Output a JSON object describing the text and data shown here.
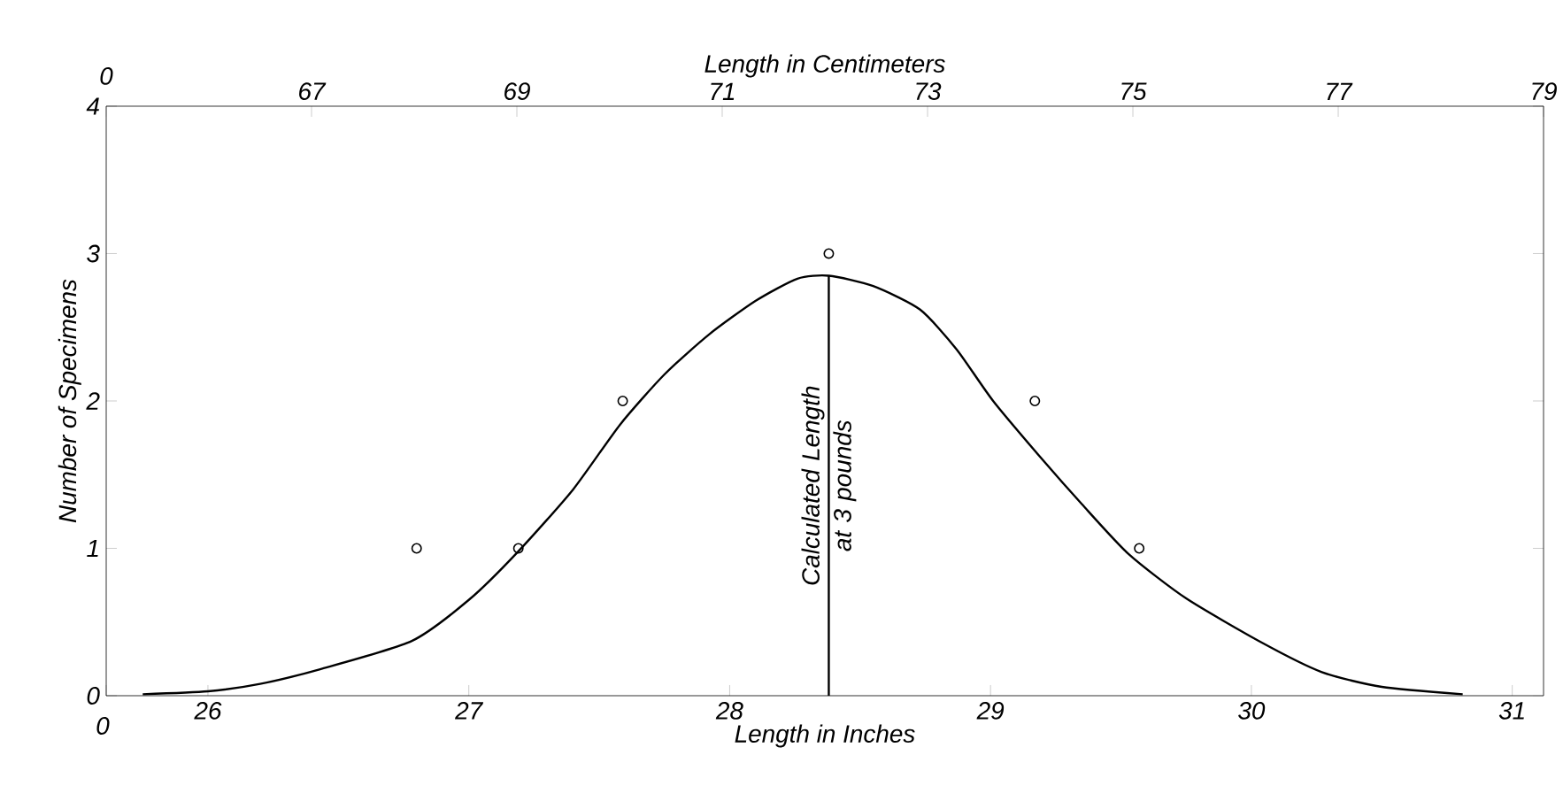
{
  "chart_data": {
    "type": "scatter",
    "xlabel": "Length in Inches",
    "ylabel": "Number of Specimens",
    "x2label": "Length in Centimeters",
    "xlim": [
      25.61,
      31.12
    ],
    "xticks": [
      {
        "value": 25.61,
        "label": null
      },
      26,
      27,
      28,
      29,
      30,
      31
    ],
    "x2lim": [
      65.0,
      79.0
    ],
    "x2ticks": [
      {
        "value": 65.0,
        "label": null
      },
      67,
      69,
      71,
      73,
      75,
      77,
      79
    ],
    "ylim": [
      0,
      4
    ],
    "yticks": [
      0,
      1,
      2,
      3,
      4
    ],
    "grid": false,
    "series": [
      {
        "color": "#000000",
        "marker": "circle",
        "x": [
          26.8,
          27.19,
          27.59,
          28.38,
          29.17,
          29.57
        ],
        "values": [
          1,
          1,
          2,
          3,
          2,
          1
        ]
      },
      {
        "type": "line",
        "color": "#000000",
        "marker": "none",
        "line_style": "solid",
        "x": [
          25.75,
          26.0,
          26.2,
          26.43,
          26.78,
          27.0,
          27.19,
          27.4,
          27.58,
          27.75,
          27.92,
          28.1,
          28.26,
          28.38,
          28.55,
          28.73,
          28.87,
          29.01,
          29.2,
          29.35,
          29.53,
          29.75,
          30.04,
          30.27,
          30.5,
          30.81
        ],
        "values": [
          0.01,
          0.03,
          0.08,
          0.18,
          0.37,
          0.65,
          0.98,
          1.4,
          1.84,
          2.18,
          2.45,
          2.68,
          2.83,
          2.85,
          2.78,
          2.62,
          2.35,
          2.0,
          1.6,
          1.3,
          0.96,
          0.66,
          0.36,
          0.16,
          0.06,
          0.01
        ]
      }
    ],
    "annotations": [
      "0",
      "0"
    ],
    "ref_lines": [
      {
        "axis": "x",
        "value": 28.38,
        "label": "Calculated Length at 3 pounds"
      }
    ]
  }
}
